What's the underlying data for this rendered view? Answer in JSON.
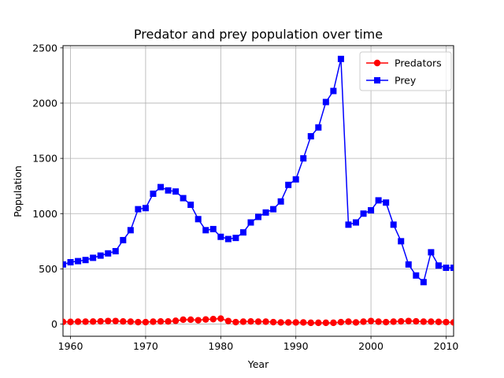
{
  "chart_data": {
    "type": "line",
    "title": "Predator and prey population over time",
    "xlabel": "Year",
    "ylabel": "Population",
    "xlim": [
      1959,
      2011
    ],
    "ylim": [
      -110,
      2520
    ],
    "xticks": [
      1960,
      1970,
      1980,
      1990,
      2000,
      2010
    ],
    "yticks": [
      0,
      500,
      1000,
      1500,
      2000,
      2500
    ],
    "grid": true,
    "legend_position": "top-right",
    "x": [
      1959,
      1960,
      1961,
      1962,
      1963,
      1964,
      1965,
      1966,
      1967,
      1968,
      1969,
      1970,
      1971,
      1972,
      1973,
      1974,
      1975,
      1976,
      1977,
      1978,
      1979,
      1980,
      1981,
      1982,
      1983,
      1984,
      1985,
      1986,
      1987,
      1988,
      1989,
      1990,
      1991,
      1992,
      1993,
      1994,
      1995,
      1996,
      1997,
      1998,
      1999,
      2000,
      2001,
      2002,
      2003,
      2004,
      2005,
      2006,
      2007,
      2008,
      2009,
      2010,
      2011
    ],
    "series": [
      {
        "name": "Predators",
        "color": "#ff0000",
        "marker": "circle",
        "values": [
          20,
          20,
          22,
          22,
          23,
          25,
          28,
          28,
          24,
          22,
          18,
          18,
          22,
          24,
          24,
          30,
          40,
          40,
          35,
          42,
          45,
          50,
          28,
          18,
          22,
          24,
          22,
          22,
          18,
          15,
          15,
          15,
          15,
          12,
          12,
          12,
          12,
          18,
          22,
          15,
          22,
          28,
          22,
          18,
          22,
          25,
          28,
          25,
          22,
          22,
          20,
          18,
          15
        ]
      },
      {
        "name": "Prey",
        "color": "#0000ff",
        "marker": "square",
        "values": [
          540,
          560,
          570,
          580,
          600,
          620,
          640,
          660,
          760,
          850,
          1040,
          1050,
          1180,
          1240,
          1210,
          1200,
          1140,
          1080,
          950,
          850,
          860,
          790,
          770,
          780,
          830,
          920,
          970,
          1010,
          1040,
          1110,
          1260,
          1310,
          1500,
          1700,
          1780,
          2010,
          2110,
          2400,
          900,
          920,
          1000,
          1030,
          1120,
          1100,
          900,
          750,
          540,
          440,
          380,
          650,
          530,
          510,
          510
        ]
      }
    ]
  }
}
